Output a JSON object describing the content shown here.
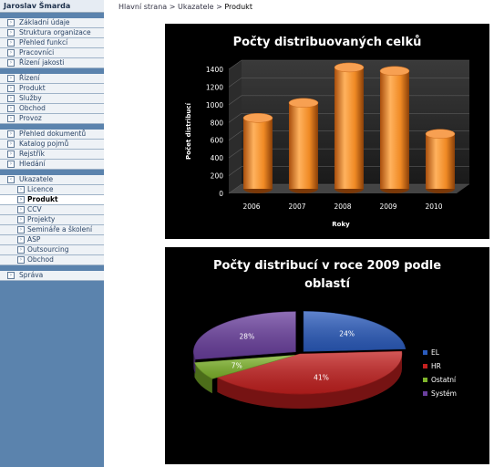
{
  "sidebar": {
    "user_name": "Jaroslav Šmarda",
    "groups": [
      [
        "Základní údaje",
        "Struktura organizace",
        "Přehled funkcí",
        "Pracovníci",
        "Řízení jakosti"
      ],
      [
        "Řízení",
        "Produkt",
        "Služby",
        "Obchod",
        "Provoz"
      ],
      [
        "Přehled dokumentů",
        "Katalog pojmů",
        "Rejstřík",
        "Hledání"
      ]
    ],
    "ukazatele": {
      "label": "Ukazatele",
      "children": [
        "Licence",
        "Produkt",
        "CCV",
        "Projekty",
        "Semináře a školení",
        "ASP",
        "Outsourcing",
        "Obchod"
      ],
      "active_index": 1
    },
    "sprava": "Správa"
  },
  "breadcrumb": {
    "home": "Hlavní strana",
    "sep": ">",
    "section": "Ukazatele",
    "current": "Produkt"
  },
  "chart_data": [
    {
      "type": "bar",
      "title": "Počty distribuovaných celků",
      "xlabel": "Roky",
      "ylabel": "Počet distribucí",
      "categories": [
        "2006",
        "2007",
        "2008",
        "2009",
        "2010"
      ],
      "values": [
        800,
        970,
        1370,
        1330,
        620
      ],
      "ylim": [
        0,
        1400
      ],
      "yticks": [
        "0",
        "200",
        "400",
        "600",
        "800",
        "1000",
        "1200",
        "1400"
      ],
      "grid": true,
      "bar_color": "#f08a24"
    },
    {
      "type": "pie",
      "title_line1": "Počty distribucí v roce 2009 podle",
      "title_line2": "oblastí",
      "slices": [
        {
          "label": "EL",
          "value": 24,
          "text": "24%",
          "color": "#2a5bbd"
        },
        {
          "label": "HR",
          "value": 41,
          "text": "41%",
          "color": "#c4201f"
        },
        {
          "label": "Ostatní",
          "value": 7,
          "text": "7%",
          "color": "#7fb52c"
        },
        {
          "label": "Systém",
          "value": 28,
          "text": "28%",
          "color": "#6a3f9e"
        }
      ],
      "legend": "right"
    }
  ]
}
